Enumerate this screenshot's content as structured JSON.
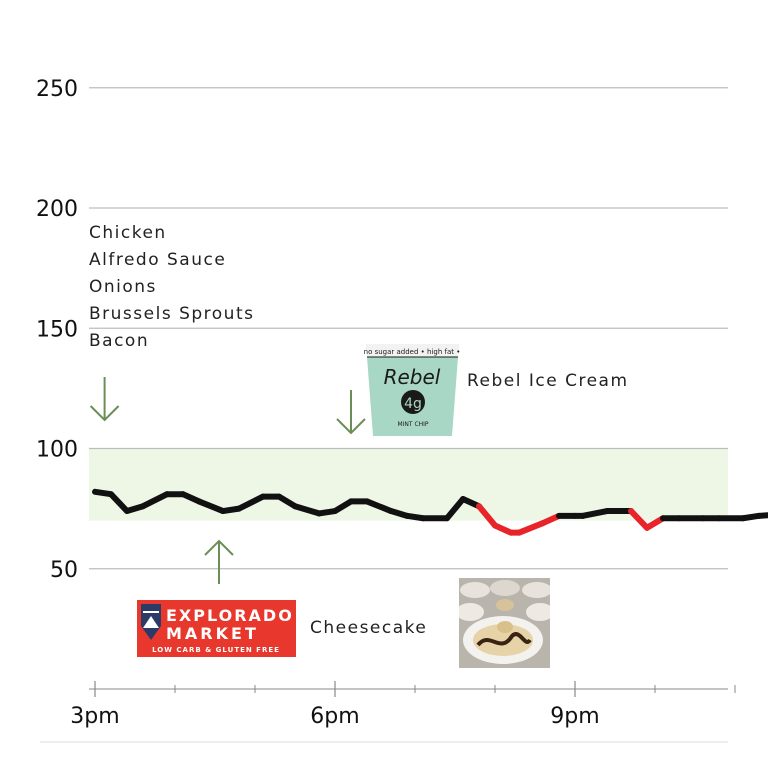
{
  "chart_data": {
    "type": "line",
    "title": "",
    "xlabel": "",
    "ylabel": "",
    "ylim": [
      0,
      280
    ],
    "xlim": [
      15,
      23.75
    ],
    "yticks": [
      50,
      100,
      150,
      200,
      250
    ],
    "xticks": [
      {
        "value": 15,
        "label": "3pm"
      },
      {
        "value": 18,
        "label": "6pm"
      },
      {
        "value": 21,
        "label": "9pm"
      }
    ],
    "minor_xticks": [
      16,
      17,
      19,
      20,
      22,
      23
    ],
    "grid": true,
    "target_range": [
      70,
      100
    ],
    "low_threshold": 70,
    "current_time_marker": 23.75,
    "series": [
      {
        "x": [
          15.0,
          15.2,
          15.4,
          15.6,
          15.9,
          16.1,
          16.3,
          16.6,
          16.8,
          17.1,
          17.3,
          17.5,
          17.8,
          18.0,
          18.2,
          18.4,
          18.7,
          18.9,
          19.1,
          19.4,
          19.6,
          19.8,
          20.0,
          20.2,
          20.3,
          20.6,
          20.8,
          21.0,
          21.1,
          21.4,
          21.7,
          21.9,
          22.1,
          22.3,
          22.6,
          22.8,
          23.1,
          23.3,
          23.75
        ],
        "values": [
          82,
          81,
          74,
          76,
          81,
          81,
          78,
          74,
          75,
          80,
          80,
          76,
          73,
          74,
          78,
          78,
          74,
          72,
          71,
          71,
          79,
          76,
          68,
          65,
          65,
          69,
          72,
          72,
          72,
          74,
          74,
          67,
          71,
          71,
          71,
          71,
          71,
          72,
          73
        ]
      }
    ],
    "annotations": [
      {
        "type": "text",
        "lines": [
          "Chicken",
          "Alfredo Sauce",
          "Onions",
          "Brussels Sprouts",
          "Bacon"
        ]
      },
      {
        "type": "down-arrow",
        "x": 15.12
      },
      {
        "type": "down-arrow",
        "x": 18.2
      },
      {
        "type": "up-arrow",
        "x": 16.55
      },
      {
        "type": "text",
        "text": "Rebel Ice Cream"
      },
      {
        "type": "text",
        "text": "Cheesecake"
      }
    ]
  },
  "colors": {
    "line": "#111111",
    "low": "#e8232a",
    "target_band": "#eef6e6",
    "grid": "#bdbdbd",
    "arrow": "#6b8e56",
    "current_dot": "#8cc63f",
    "logo_bg": "#e8372c"
  },
  "rebel_pint": {
    "brand": "Rebel",
    "carbs": "4g",
    "flavor": "MINT CHIP",
    "band_text": "no sugar added • high fat •",
    "color": "#a9d7c6"
  },
  "explorado_logo": {
    "line1": "EXPLORADO",
    "line2": "MARKET",
    "tagline": "LOW CARB & GLUTEN FREE"
  },
  "cheesecake_photo": {
    "icon": "cheesecake-photo"
  }
}
